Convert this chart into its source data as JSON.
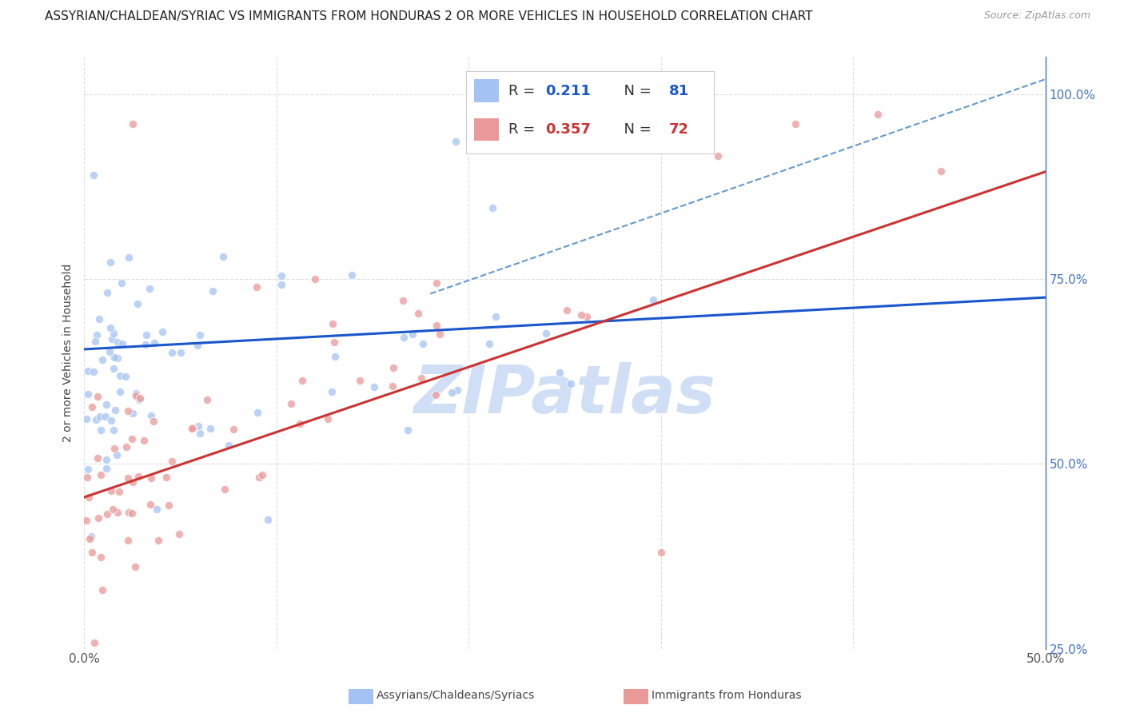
{
  "title": "ASSYRIAN/CHALDEAN/SYRIAC VS IMMIGRANTS FROM HONDURAS 2 OR MORE VEHICLES IN HOUSEHOLD CORRELATION CHART",
  "source": "Source: ZipAtlas.com",
  "ylabel": "2 or more Vehicles in Household",
  "legend_label1": "Assyrians/Chaldeans/Syriacs",
  "legend_label2": "Immigrants from Honduras",
  "R1": 0.211,
  "N1": 81,
  "R2": 0.357,
  "N2": 72,
  "color1": "#a4c2f4",
  "color2": "#ea9999",
  "trendline1_color": "#1a56cc",
  "trendline2_color": "#cc3333",
  "trendline1_dashed_color": "#6699cc",
  "watermark_text": "ZIPatlas",
  "watermark_color": "#d0dff5",
  "background_color": "#ffffff",
  "grid_color": "#dddddd",
  "right_axis_color": "#4472c4",
  "xlim": [
    0.0,
    0.5
  ],
  "ylim": [
    0.3,
    1.05
  ],
  "xtick_positions": [
    0.0,
    0.1,
    0.2,
    0.3,
    0.4,
    0.5
  ],
  "xtick_labels": [
    "0.0%",
    "",
    "",
    "",
    "",
    "50.0%"
  ],
  "ytick_positions": [
    0.25,
    0.5,
    0.75,
    1.0
  ],
  "ytick_labels": [
    "25.0%",
    "50.0%",
    "75.0%",
    "100.0%"
  ],
  "title_fontsize": 11,
  "source_fontsize": 9,
  "axis_label_fontsize": 10,
  "tick_fontsize": 11,
  "legend_fontsize": 13,
  "watermark_fontsize": 60,
  "scatter_size": 55,
  "scatter_alpha": 0.75,
  "scatter_linewidth": 0.8,
  "scatter_edgecolor": "#ffffff"
}
